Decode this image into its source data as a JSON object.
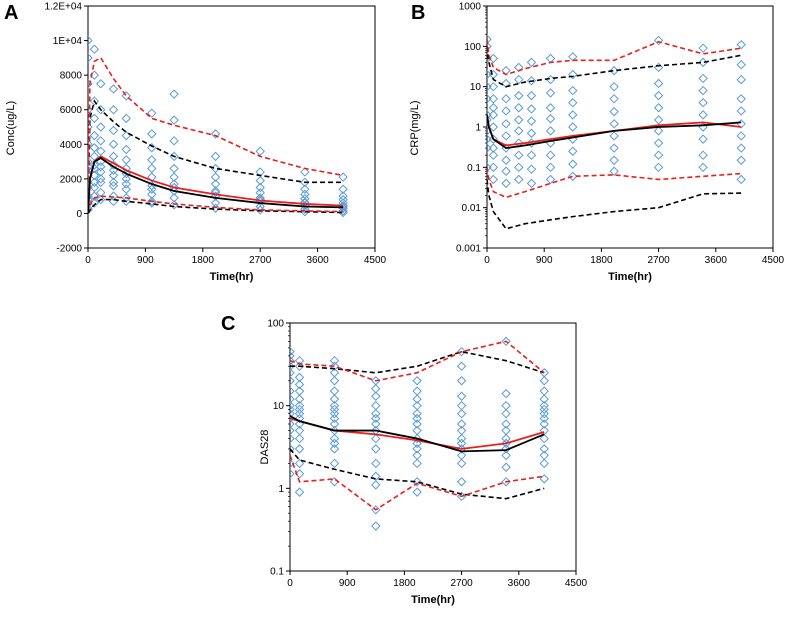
{
  "colors": {
    "observed": "#5a9bd8",
    "median_obs": "#000000",
    "median_pred": "#e8201c",
    "pi_obs": "#000000",
    "pi_pred": "#e8201c"
  },
  "panels": [
    {
      "letter": "A"
    },
    {
      "letter": "B"
    },
    {
      "letter": "C"
    }
  ],
  "chart_data": [
    {
      "type": "scatter",
      "panel": "A",
      "xlabel": "Time(hr)",
      "ylabel": "Conc(ug/L)",
      "xlim": [
        0,
        4500
      ],
      "ylim": [
        -2000,
        12000
      ],
      "yscale": "linear",
      "xticks": [
        0,
        900,
        1800,
        2700,
        3600,
        4500
      ],
      "yticks": [
        -2000,
        0,
        2000,
        4000,
        6000,
        8000,
        10000,
        12000
      ],
      "xtick_labels": [
        "0",
        "900",
        "1800",
        "2700",
        "3600",
        "4500"
      ],
      "ytick_labels": [
        "-2000",
        "0",
        "2000",
        "4000",
        "6000",
        "8000",
        "1E+04",
        "1.2E+04"
      ],
      "obs_times": [
        0,
        100,
        200,
        400,
        600,
        1000,
        1350,
        2000,
        2700,
        3400,
        4000
      ],
      "obs_values": [
        [
          300,
          800,
          1500,
          2200,
          3000,
          4000,
          5000,
          6000,
          7500,
          9000,
          10000,
          200,
          600,
          1000,
          1800,
          2500
        ],
        [
          1500,
          2200,
          2800,
          3300,
          3800,
          4500,
          5500,
          6500,
          8000,
          9500,
          1000,
          600,
          1800,
          2600
        ],
        [
          1200,
          1800,
          2400,
          3000,
          3600,
          4200,
          5000,
          6000,
          7500,
          800,
          2000,
          2700
        ],
        [
          1000,
          1600,
          2200,
          2800,
          3300,
          4000,
          4800,
          6000,
          7200,
          700,
          1800,
          2500
        ],
        [
          900,
          1400,
          2000,
          2600,
          3100,
          3700,
          4500,
          5500,
          6800,
          700,
          1700,
          2300
        ],
        [
          700,
          1100,
          1600,
          2100,
          2600,
          3100,
          3800,
          4600,
          5800,
          600,
          1400
        ],
        [
          500,
          900,
          1300,
          1700,
          2100,
          2600,
          3300,
          4200,
          5400,
          6900,
          1500
        ],
        [
          300,
          600,
          1000,
          1300,
          1700,
          2100,
          2600,
          3300,
          4600,
          1200
        ],
        [
          200,
          400,
          700,
          900,
          1200,
          1500,
          1900,
          2400,
          3600,
          800
        ],
        [
          100,
          250,
          450,
          650,
          850,
          1100,
          1400,
          1800,
          2400,
          600
        ],
        [
          50,
          150,
          300,
          450,
          600,
          800,
          1000,
          1400,
          2100,
          400
        ]
      ],
      "series": [
        {
          "name": "median_obs",
          "x": [
            0,
            30,
            100,
            200,
            400,
            600,
            1000,
            1350,
            2000,
            2700,
            3400,
            4000
          ],
          "y": [
            0,
            2000,
            3000,
            3200,
            2700,
            2300,
            1700,
            1300,
            900,
            600,
            400,
            350
          ]
        },
        {
          "name": "median_pred",
          "x": [
            0,
            30,
            100,
            200,
            400,
            600,
            1000,
            1350,
            2000,
            2700,
            3400,
            4000
          ],
          "y": [
            0,
            2000,
            3000,
            3300,
            2900,
            2500,
            1900,
            1500,
            1100,
            750,
            550,
            450
          ]
        },
        {
          "name": "pi_obs_upper",
          "x": [
            0,
            30,
            100,
            200,
            400,
            600,
            1000,
            1350,
            2000,
            2700,
            3400,
            4000
          ],
          "y": [
            0,
            5500,
            6500,
            6000,
            5300,
            4700,
            3900,
            3300,
            2600,
            2200,
            1800,
            1800
          ]
        },
        {
          "name": "pi_obs_lower",
          "x": [
            0,
            30,
            100,
            200,
            400,
            600,
            1000,
            1350,
            2000,
            2700,
            3400,
            4000
          ],
          "y": [
            0,
            200,
            500,
            800,
            800,
            700,
            550,
            400,
            250,
            150,
            100,
            50
          ]
        },
        {
          "name": "pi_pred_upper",
          "x": [
            0,
            30,
            100,
            200,
            400,
            600,
            1000,
            1350,
            2000,
            2700,
            3400,
            4000
          ],
          "y": [
            0,
            7500,
            8800,
            9000,
            7800,
            6800,
            5500,
            5100,
            4500,
            3300,
            2600,
            2200
          ]
        },
        {
          "name": "pi_pred_lower",
          "x": [
            0,
            30,
            100,
            200,
            400,
            600,
            1000,
            1350,
            2000,
            2700,
            3400,
            4000
          ],
          "y": [
            0,
            500,
            900,
            1000,
            950,
            900,
            700,
            550,
            350,
            200,
            150,
            100
          ]
        }
      ]
    },
    {
      "type": "scatter",
      "panel": "B",
      "xlabel": "Time(hr)",
      "ylabel": "CRP(mg/L)",
      "xlim": [
        0,
        4500
      ],
      "ylim": [
        0.001,
        1000
      ],
      "yscale": "log",
      "xticks": [
        0,
        900,
        1800,
        2700,
        3600,
        4500
      ],
      "yticks": [
        0.001,
        0.01,
        0.1,
        1,
        10,
        100,
        1000
      ],
      "xtick_labels": [
        "0",
        "900",
        "1800",
        "2700",
        "3600",
        "4500"
      ],
      "ytick_labels": [
        "0.001",
        "0.01",
        "0.1",
        "1",
        "10",
        "100",
        "1000"
      ],
      "obs_times": [
        0,
        100,
        300,
        500,
        700,
        1000,
        1350,
        2000,
        2700,
        3400,
        4000
      ],
      "obs_values": [
        [
          0.1,
          0.3,
          0.8,
          2,
          5,
          10,
          20,
          50,
          100,
          150,
          1.5,
          0.5
        ],
        [
          0.05,
          0.1,
          0.2,
          0.5,
          1,
          2,
          5,
          10,
          20,
          50,
          0.3,
          3
        ],
        [
          0.04,
          0.08,
          0.15,
          0.3,
          0.6,
          1.2,
          2.5,
          5,
          12,
          25
        ],
        [
          0.05,
          0.1,
          0.2,
          0.4,
          0.8,
          1.5,
          3,
          6,
          15,
          30
        ],
        [
          0.04,
          0.09,
          0.2,
          0.4,
          0.7,
          1.4,
          2.8,
          6,
          14,
          40
        ],
        [
          0.05,
          0.1,
          0.2,
          0.4,
          0.8,
          1.6,
          3,
          7,
          15,
          50
        ],
        [
          0.06,
          0.12,
          0.25,
          0.5,
          1,
          2,
          4,
          8,
          20,
          55
        ],
        [
          0.08,
          0.15,
          0.3,
          0.6,
          1.2,
          2.4,
          5,
          10,
          25
        ],
        [
          0.1,
          0.2,
          0.4,
          0.8,
          1.5,
          3,
          6,
          12,
          30,
          140
        ],
        [
          0.1,
          0.2,
          0.5,
          1,
          2,
          4,
          8,
          16,
          40,
          90
        ],
        [
          0.05,
          0.15,
          0.3,
          0.6,
          1.2,
          2.5,
          5,
          15,
          35,
          110
        ]
      ],
      "series": [
        {
          "name": "median_obs",
          "x": [
            0,
            30,
            100,
            300,
            600,
            1000,
            1350,
            2000,
            2700,
            3400,
            4000
          ],
          "y": [
            2,
            1,
            0.5,
            0.3,
            0.35,
            0.45,
            0.55,
            0.8,
            1,
            1.1,
            1.3
          ]
        },
        {
          "name": "median_pred",
          "x": [
            0,
            30,
            100,
            300,
            600,
            1000,
            1350,
            2000,
            2700,
            3400,
            4000
          ],
          "y": [
            2,
            1,
            0.5,
            0.35,
            0.4,
            0.5,
            0.6,
            0.8,
            1.1,
            1.3,
            1
          ]
        },
        {
          "name": "pi_obs_upper",
          "x": [
            0,
            30,
            100,
            300,
            600,
            1000,
            1350,
            2000,
            2700,
            3400,
            4000
          ],
          "y": [
            100,
            40,
            15,
            10,
            13,
            16,
            18,
            25,
            33,
            40,
            60
          ]
        },
        {
          "name": "pi_obs_lower",
          "x": [
            0,
            30,
            100,
            300,
            600,
            1000,
            1350,
            2000,
            2700,
            3400,
            4000
          ],
          "y": [
            0.05,
            0.02,
            0.008,
            0.003,
            0.004,
            0.005,
            0.006,
            0.008,
            0.01,
            0.022,
            0.023
          ]
        },
        {
          "name": "pi_pred_upper",
          "x": [
            0,
            30,
            100,
            300,
            600,
            1000,
            1350,
            2000,
            2700,
            3400,
            4000
          ],
          "y": [
            150,
            60,
            30,
            20,
            28,
            40,
            45,
            45,
            130,
            65,
            90
          ]
        },
        {
          "name": "pi_pred_lower",
          "x": [
            0,
            30,
            100,
            300,
            600,
            1000,
            1350,
            2000,
            2700,
            3400,
            4000
          ],
          "y": [
            0.1,
            0.05,
            0.025,
            0.018,
            0.025,
            0.04,
            0.06,
            0.065,
            0.05,
            0.06,
            0.07
          ]
        }
      ]
    },
    {
      "type": "scatter",
      "panel": "C",
      "xlabel": "Time(hr)",
      "ylabel": "DAS28",
      "xlim": [
        0,
        4500
      ],
      "ylim": [
        0.1,
        100
      ],
      "yscale": "log",
      "xticks": [
        0,
        900,
        1800,
        2700,
        3600,
        4500
      ],
      "yticks": [
        0.1,
        1,
        10,
        100
      ],
      "xtick_labels": [
        "0",
        "900",
        "1800",
        "2700",
        "3600",
        "4500"
      ],
      "ytick_labels": [
        "0.1",
        "1",
        "10",
        "100"
      ],
      "obs_times": [
        0,
        150,
        700,
        1350,
        2000,
        2700,
        3400,
        4000
      ],
      "obs_values": [
        [
          2,
          3,
          4,
          5,
          6,
          7,
          8,
          9,
          10,
          12,
          15,
          20,
          25,
          30,
          35,
          40,
          45,
          1.5
        ],
        [
          0.9,
          1.5,
          2,
          3,
          4,
          5,
          6,
          7,
          8,
          9,
          10,
          12,
          15,
          18,
          22,
          30,
          35
        ],
        [
          1.2,
          2,
          3,
          3.5,
          4,
          5,
          6,
          7,
          8,
          9,
          10,
          12,
          15,
          20,
          25,
          30,
          35
        ],
        [
          0.35,
          0.55,
          1.1,
          1.4,
          2,
          3,
          4,
          5,
          6,
          7,
          8,
          10,
          13,
          16,
          20
        ],
        [
          0.9,
          1.2,
          2,
          2.5,
          3,
          3.5,
          4,
          5,
          6,
          7,
          8,
          10,
          12,
          15,
          20
        ],
        [
          0.8,
          1.2,
          2,
          2.5,
          3,
          3.5,
          4,
          5,
          6,
          8,
          10,
          13,
          20,
          30,
          45
        ],
        [
          1.2,
          1.8,
          2.5,
          3,
          3.5,
          4,
          5,
          6,
          8,
          10,
          14,
          60
        ],
        [
          1.3,
          2,
          2.5,
          3,
          4,
          5,
          6,
          7,
          8,
          9,
          10,
          12,
          15,
          20,
          25
        ]
      ],
      "series": [
        {
          "name": "median_obs",
          "x": [
            0,
            150,
            700,
            1350,
            2000,
            2700,
            3400,
            4000
          ],
          "y": [
            7.5,
            6.5,
            5,
            5,
            4,
            2.8,
            2.9,
            4.5
          ]
        },
        {
          "name": "median_pred",
          "x": [
            0,
            150,
            700,
            1350,
            2000,
            2700,
            3400,
            4000
          ],
          "y": [
            7,
            6.5,
            5,
            4.5,
            3.8,
            3,
            3.5,
            4.8
          ]
        },
        {
          "name": "pi_obs_upper",
          "x": [
            0,
            150,
            700,
            1350,
            2000,
            2700,
            3400,
            4000
          ],
          "y": [
            30,
            30,
            28,
            25,
            30,
            45,
            35,
            25
          ]
        },
        {
          "name": "pi_obs_lower",
          "x": [
            0,
            150,
            700,
            1350,
            2000,
            2700,
            3400,
            4000
          ],
          "y": [
            3,
            2.2,
            1.7,
            1.3,
            1.2,
            0.85,
            0.75,
            1
          ]
        },
        {
          "name": "pi_pred_upper",
          "x": [
            0,
            150,
            700,
            1350,
            2000,
            2700,
            3400,
            4000
          ],
          "y": [
            35,
            32,
            30,
            20,
            25,
            45,
            60,
            25
          ]
        },
        {
          "name": "pi_pred_lower",
          "x": [
            0,
            150,
            700,
            1350,
            2000,
            2700,
            3400,
            4000
          ],
          "y": [
            2.5,
            1.2,
            1.3,
            0.55,
            1.15,
            0.8,
            1.2,
            1.4
          ]
        }
      ]
    }
  ]
}
